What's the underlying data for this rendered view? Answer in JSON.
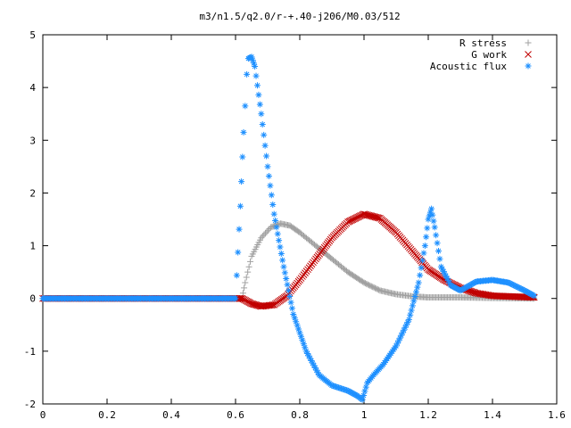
{
  "chart_data": {
    "type": "scatter",
    "title": "m3/n1.5/q2.0/r-+.40-j206/M0.03/512",
    "xlabel": "",
    "ylabel": "",
    "xlim": [
      0,
      1.6
    ],
    "ylim": [
      -2,
      5
    ],
    "xticks": [
      "0",
      "0.2",
      "0.4",
      "0.6",
      "0.8",
      "1",
      "1.2",
      "1.4",
      "1.6"
    ],
    "yticks": [
      "-2",
      "-1",
      "0",
      "1",
      "2",
      "3",
      "4",
      "5"
    ],
    "legend_position": "top-right",
    "grid": false,
    "series": [
      {
        "name": "R stress",
        "marker": "plus",
        "color": "#a0a0a0",
        "points": [
          [
            0.0,
            0.0
          ],
          [
            0.3,
            0.0
          ],
          [
            0.6,
            0.0
          ],
          [
            0.62,
            0.0
          ],
          [
            0.63,
            0.3
          ],
          [
            0.65,
            0.8
          ],
          [
            0.68,
            1.15
          ],
          [
            0.71,
            1.35
          ],
          [
            0.74,
            1.42
          ],
          [
            0.77,
            1.38
          ],
          [
            0.8,
            1.25
          ],
          [
            0.85,
            1.0
          ],
          [
            0.9,
            0.75
          ],
          [
            0.95,
            0.5
          ],
          [
            1.0,
            0.3
          ],
          [
            1.05,
            0.15
          ],
          [
            1.1,
            0.08
          ],
          [
            1.15,
            0.04
          ],
          [
            1.2,
            0.02
          ],
          [
            1.3,
            0.02
          ],
          [
            1.4,
            0.01
          ],
          [
            1.53,
            0.0
          ]
        ]
      },
      {
        "name": "G work",
        "marker": "cross",
        "color": "#c00000",
        "points": [
          [
            0.0,
            0.0
          ],
          [
            0.3,
            0.0
          ],
          [
            0.6,
            0.0
          ],
          [
            0.62,
            0.0
          ],
          [
            0.65,
            -0.1
          ],
          [
            0.68,
            -0.15
          ],
          [
            0.72,
            -0.12
          ],
          [
            0.76,
            0.05
          ],
          [
            0.8,
            0.35
          ],
          [
            0.85,
            0.75
          ],
          [
            0.9,
            1.15
          ],
          [
            0.95,
            1.45
          ],
          [
            1.0,
            1.6
          ],
          [
            1.05,
            1.52
          ],
          [
            1.1,
            1.25
          ],
          [
            1.15,
            0.9
          ],
          [
            1.2,
            0.55
          ],
          [
            1.25,
            0.35
          ],
          [
            1.3,
            0.2
          ],
          [
            1.35,
            0.1
          ],
          [
            1.4,
            0.05
          ],
          [
            1.53,
            0.02
          ]
        ]
      },
      {
        "name": "Acoustic flux",
        "marker": "star",
        "color": "#1e90ff",
        "points": [
          [
            0.0,
            0.0
          ],
          [
            0.3,
            0.0
          ],
          [
            0.6,
            0.0
          ],
          [
            0.615,
            1.75
          ],
          [
            0.625,
            3.15
          ],
          [
            0.63,
            3.65
          ],
          [
            0.635,
            4.25
          ],
          [
            0.64,
            4.55
          ],
          [
            0.65,
            4.58
          ],
          [
            0.66,
            4.4
          ],
          [
            0.68,
            3.5
          ],
          [
            0.7,
            2.5
          ],
          [
            0.72,
            1.6
          ],
          [
            0.75,
            0.6
          ],
          [
            0.78,
            -0.3
          ],
          [
            0.82,
            -1.0
          ],
          [
            0.86,
            -1.45
          ],
          [
            0.9,
            -1.65
          ],
          [
            0.95,
            -1.75
          ],
          [
            0.98,
            -1.85
          ],
          [
            0.995,
            -1.92
          ],
          [
            1.01,
            -1.6
          ],
          [
            1.03,
            -1.45
          ],
          [
            1.06,
            -1.25
          ],
          [
            1.1,
            -0.9
          ],
          [
            1.14,
            -0.4
          ],
          [
            1.17,
            0.3
          ],
          [
            1.19,
            1.0
          ],
          [
            1.2,
            1.5
          ],
          [
            1.21,
            1.7
          ],
          [
            1.22,
            1.35
          ],
          [
            1.24,
            0.6
          ],
          [
            1.27,
            0.25
          ],
          [
            1.3,
            0.15
          ],
          [
            1.35,
            0.32
          ],
          [
            1.4,
            0.35
          ],
          [
            1.45,
            0.3
          ],
          [
            1.5,
            0.15
          ],
          [
            1.53,
            0.05
          ]
        ]
      }
    ]
  }
}
